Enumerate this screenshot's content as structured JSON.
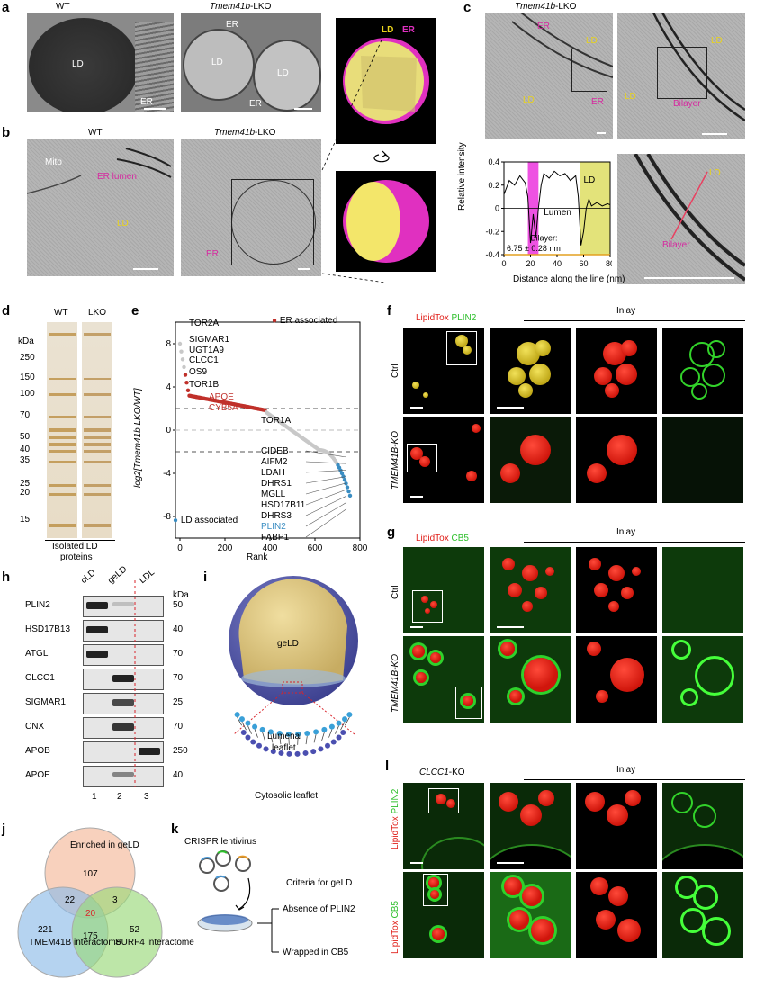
{
  "panels": {
    "a": {
      "letter": "a",
      "wt": "WT",
      "lko_gene": "Tmem41b",
      "lko_suffix": "-LKO",
      "ld": "LD",
      "er": "ER"
    },
    "b": {
      "letter": "b",
      "wt": "WT",
      "lko_gene": "Tmem41b",
      "lko_suffix": "-LKO",
      "mito": "Mito",
      "er_lumen": "ER lumen",
      "ld": "LD",
      "er": "ER"
    },
    "model": {
      "ld": "LD",
      "er": "ER"
    },
    "c": {
      "letter": "c",
      "lko_gene": "Tmem41b",
      "lko_suffix": "-LKO",
      "ld": "LD",
      "er": "ER",
      "bilayer": "Bilayer"
    },
    "d": {
      "letter": "d",
      "lanes": [
        "WT",
        "LKO"
      ],
      "kda": "kDa",
      "markers": [
        "250",
        "150",
        "100",
        "70",
        "50",
        "40",
        "35",
        "25",
        "20",
        "15"
      ],
      "caption_line1": "Isolated LD",
      "caption_line2": "proteins"
    },
    "e": {
      "letter": "e",
      "legend_er": "ER associated",
      "legend_ld": "LD associated",
      "ylabel": "log2[Tmem41b LKO/WT]",
      "xlabel": "Rank",
      "labels_up": [
        "TOR2A",
        "SIGMAR1",
        "UGT1A9",
        "CLCC1",
        "OS9",
        "TOR1B",
        "APOE",
        "CYB5A",
        "TOR1A"
      ],
      "labels_down": [
        "CIDEB",
        "AIFM2",
        "LDAH",
        "DHRS1",
        "MGLL",
        "HSD17B11",
        "DHRS3",
        "PLIN2",
        "FABP1"
      ]
    },
    "f": {
      "letter": "f",
      "stain1": "LipidTox",
      "stain2": "PLIN2",
      "inlay": "Inlay",
      "rows": [
        "Ctrl",
        "TMEM41B-KO"
      ]
    },
    "g": {
      "letter": "g",
      "stain1": "LipidTox",
      "stain2": "CB5",
      "inlay": "Inlay",
      "rows": [
        "Ctrl",
        "TMEM41B-KO"
      ]
    },
    "h": {
      "letter": "h",
      "lanes": [
        "cLD",
        "geLD",
        "LDL"
      ],
      "kda": "kDa",
      "rows": [
        {
          "name": "PLIN2",
          "kda": "50"
        },
        {
          "name": "HSD17B13",
          "kda": "40"
        },
        {
          "name": "ATGL",
          "kda": "70"
        },
        {
          "name": "CLCC1",
          "kda": "70"
        },
        {
          "name": "SIGMAR1",
          "kda": "25"
        },
        {
          "name": "CNX",
          "kda": "70"
        },
        {
          "name": "APOB",
          "kda": "250"
        },
        {
          "name": "APOE",
          "kda": "40"
        }
      ],
      "lane_numbers": [
        "1",
        "2",
        "3"
      ]
    },
    "i": {
      "letter": "i",
      "geld": "geLD",
      "lumenal_line1": "Lumenal",
      "lumenal_line2": "leaflet",
      "cytosolic": "Cytosolic leaflet"
    },
    "j": {
      "letter": "j",
      "sets": [
        "Enriched in geLD",
        "TMEM41B interactome",
        "SURF4 interactome"
      ],
      "counts": {
        "only_a": "107",
        "only_b": "221",
        "only_c": "52",
        "ab": "22",
        "ac": "3",
        "bc": "175",
        "abc": "20"
      }
    },
    "k": {
      "letter": "k",
      "title": "CRISPR lentivirus",
      "criteria": "Criteria for geLD",
      "crit1": "Absence of PLIN2",
      "crit2": "Wrapped in CB5"
    },
    "l": {
      "letter": "l",
      "gene": "CLCC1",
      "suffix": "-KO",
      "inlay": "Inlay",
      "row1_s1": "LipidTox",
      "row1_s2": "PLIN2",
      "row2_s1": "LipidTox",
      "row2_s2": "CB5"
    }
  },
  "chart_data": {
    "type": "line",
    "title": "",
    "xlabel": "Distance along the line (nm)",
    "ylabel": "Relative intensity",
    "xlim": [
      0,
      80
    ],
    "ylim": [
      -0.4,
      0.4
    ],
    "xticks": [
      "0",
      "20",
      "40",
      "60",
      "80"
    ],
    "yticks": [
      "0.4",
      "0.2",
      "0",
      "-0.2",
      "-0.4"
    ],
    "region_labels": {
      "lumen": "Lumen",
      "ld": "LD",
      "bilayer_line1": "Bilayer:",
      "bilayer_line2": "6.75 ± 0.28 nm"
    },
    "x": [
      0,
      4,
      8,
      12,
      16,
      18,
      20,
      22,
      24,
      26,
      28,
      30,
      34,
      38,
      42,
      46,
      50,
      54,
      56,
      58,
      60,
      62,
      64,
      66,
      70,
      74,
      78,
      80
    ],
    "values": [
      0.12,
      0.24,
      0.2,
      0.28,
      0.22,
      0.1,
      -0.3,
      -0.05,
      -0.25,
      0.0,
      0.2,
      0.3,
      0.26,
      0.32,
      0.28,
      0.3,
      0.24,
      0.28,
      0.1,
      -0.32,
      -0.2,
      0.0,
      0.08,
      0.02,
      0.05,
      0.02,
      0.04,
      0.03
    ]
  }
}
